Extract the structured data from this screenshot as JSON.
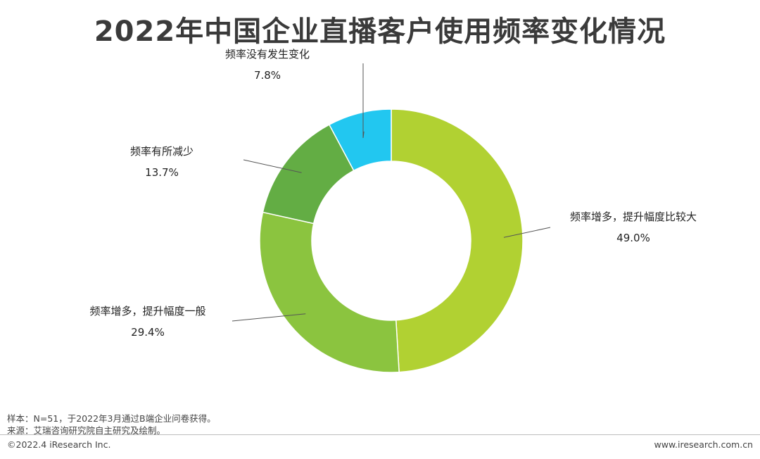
{
  "title": "2022年中国企业直播客户使用频率变化情况",
  "chart_data": {
    "type": "pie",
    "style": "donut",
    "categories": [
      "频率增多，提升幅度比较大",
      "频率增多，提升幅度一般",
      "频率有所减少",
      "频率没有发生变化"
    ],
    "values": [
      49.0,
      29.4,
      13.7,
      7.8
    ],
    "value_labels": [
      "49.0%",
      "29.4%",
      "13.7%",
      "7.8%"
    ],
    "colors": [
      "#b1d132",
      "#8bc43f",
      "#63ad44",
      "#22c7f0"
    ]
  },
  "footer": {
    "sample_note": "样本：N=51，于2022年3月通过B端企业问卷获得。",
    "source_note": "来源：艾瑞咨询研究院自主研究及绘制。",
    "copyright": "©2022.4 iResearch Inc.",
    "website": "www.iresearch.com.cn"
  }
}
